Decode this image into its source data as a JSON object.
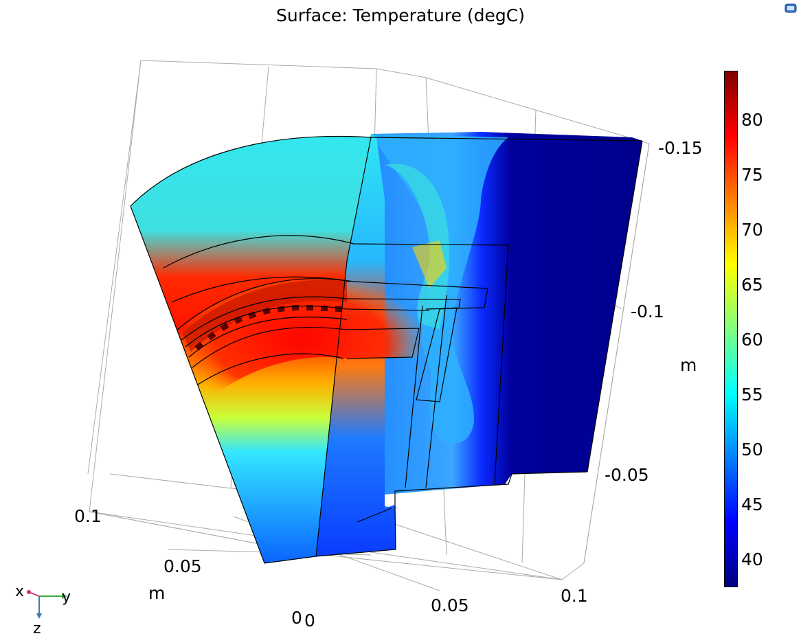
{
  "title": "Surface: Temperature (degC)",
  "colorbar": {
    "min": 37.5,
    "max": 84.5,
    "ticks": [
      "80",
      "75",
      "70",
      "65",
      "60",
      "55",
      "50",
      "45",
      "40"
    ],
    "colors": [
      "#00007f",
      "#0000ff",
      "#007fff",
      "#00ffff",
      "#7fff7f",
      "#ffff00",
      "#ff7f00",
      "#ff0000",
      "#7f0000"
    ]
  },
  "axes": {
    "x_ticks": [
      "0.1",
      "0.05",
      "0"
    ],
    "x_unit": "m",
    "y_ticks": [
      "0",
      "0.05",
      "0.1"
    ],
    "z_ticks": [
      "-0.15",
      "-0.1",
      "-0.05"
    ],
    "z_unit": "m"
  },
  "triad": {
    "x": "x",
    "y": "y",
    "z": "z"
  },
  "icons": {
    "corner": "window-icon"
  }
}
